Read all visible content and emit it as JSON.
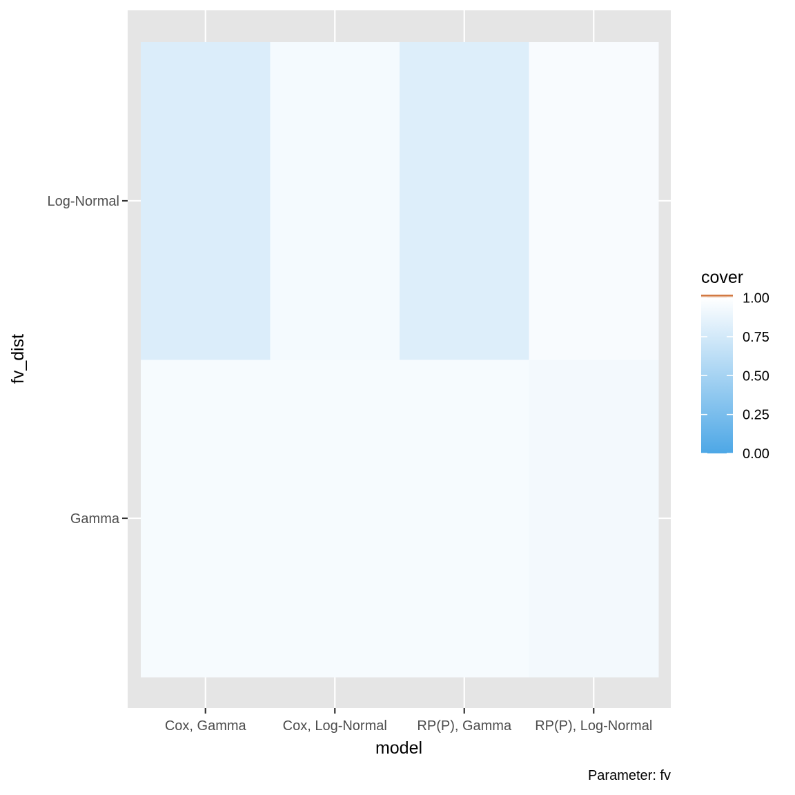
{
  "chart_data": {
    "type": "heatmap",
    "x_categories": [
      "Cox, Gamma",
      "Cox, Log-Normal",
      "RP(P), Gamma",
      "RP(P), Log-Normal"
    ],
    "y_categories": [
      "Gamma",
      "Log-Normal"
    ],
    "values": [
      [
        0.95,
        0.95,
        0.95,
        0.93
      ],
      [
        0.8,
        0.94,
        0.81,
        0.96
      ]
    ],
    "xlabel": "model",
    "ylabel": "fv_dist",
    "legend": {
      "title": "cover",
      "placement": "right",
      "ticks": [
        "0.00",
        "0.25",
        "0.50",
        "0.75",
        "1.00"
      ],
      "tick_values": [
        0,
        0.25,
        0.5,
        0.75,
        1.0
      ],
      "range": [
        0,
        1.02
      ],
      "low_color": "#4da7e6",
      "mid_color": "#ffffff",
      "high_color": "#c24a00"
    },
    "caption": "Parameter: fv",
    "panel_background": "#e5e5e5",
    "grid": true
  }
}
